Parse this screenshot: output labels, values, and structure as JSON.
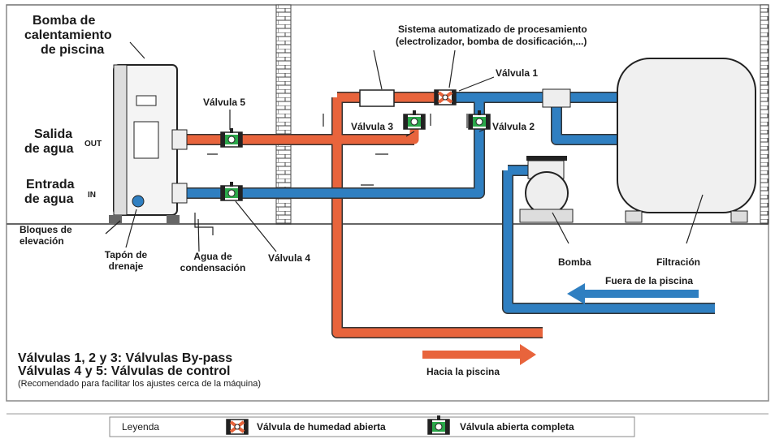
{
  "labels": {
    "heat_pump": [
      "Bomba de",
      "calentamiento",
      "de piscina"
    ],
    "water_out": [
      "Salida",
      "de agua"
    ],
    "out_tag": "OUT",
    "water_in": [
      "Entrada",
      "de agua"
    ],
    "in_tag": "IN",
    "valve_5": "Válvula 5",
    "valve_4": "Válvula 4",
    "valve_3": "Válvula 3",
    "valve_2": "Válvula 2",
    "valve_1": "Válvula 1",
    "automated_system": [
      "Sistema automatizado de procesamiento",
      "(electrolizador, bomba de dosificación,...)"
    ],
    "lifting_blocks": [
      "Bloques de",
      "elevación"
    ],
    "drain_plug": [
      "Tapón de",
      "drenaje"
    ],
    "condensation": [
      "Agua de",
      "condensación"
    ],
    "pump": "Bomba",
    "filtration": "Filtración",
    "from_pool": "Fuera de la piscina",
    "to_pool": "Hacia la piscina"
  },
  "notes": [
    "Válvulas 1, 2 y 3: Válvulas By-pass",
    "Válvulas 4 y 5: Válvulas de control",
    "(Recomendado para facilitar los ajustes cerca de la máquina)"
  ],
  "legend": {
    "title": "Leyenda",
    "items": [
      "Válvula de humedad abierta",
      "Válvula abierta completa"
    ]
  }
}
